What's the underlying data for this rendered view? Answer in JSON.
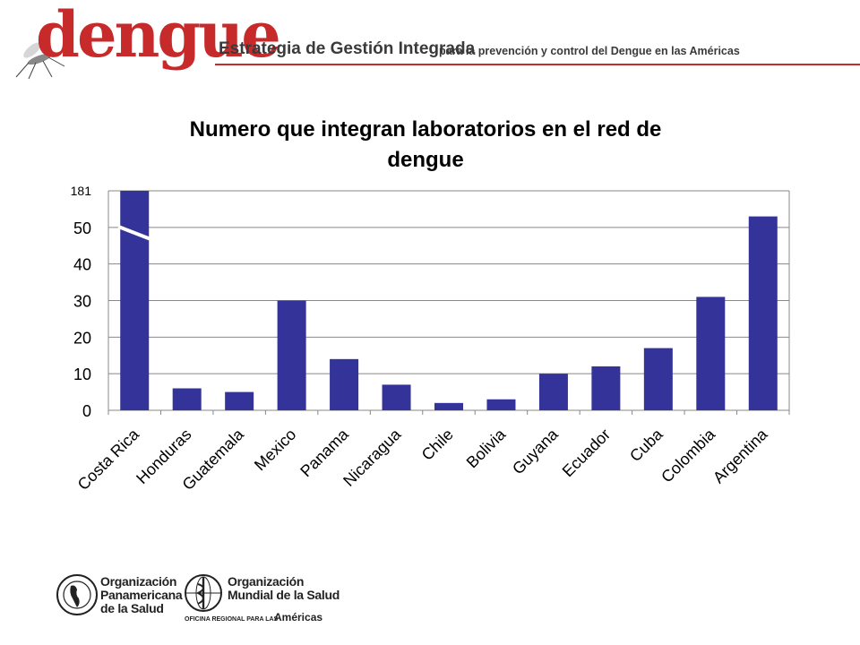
{
  "header": {
    "brand": "dengue",
    "title": "Estrategia de Gestión Integrada",
    "subtitle": "para la prevención y control del Dengue en las Américas",
    "accent_color": "#c62a2a"
  },
  "chart_data": {
    "type": "bar",
    "title_line1": "Numero que integran  laboratorios en el red de",
    "title_line2": "dengue",
    "categories": [
      "Costa Rica",
      "Honduras",
      "Guatemala",
      "Mexico",
      "Panama",
      "Nicaragua",
      "Chile",
      "Bolivia",
      "Guyana",
      "Ecuador",
      "Cuba",
      "Colombia",
      "Argentina"
    ],
    "values": [
      181,
      6,
      5,
      30,
      14,
      7,
      2,
      3,
      10,
      12,
      17,
      31,
      53
    ],
    "yticks": [
      "0",
      "10",
      "20",
      "30",
      "40",
      "50",
      "181"
    ],
    "ylim": [
      0,
      60
    ],
    "axis_break": true,
    "grid": true,
    "bar_color": "#333399"
  },
  "footer": {
    "ops_line1": "Organización",
    "ops_line2": "Panamericana",
    "ops_line3": "de la Salud",
    "oms_line1": "Organización",
    "oms_line2": "Mundial de la Salud",
    "oms_office": "OFICINA REGIONAL PARA LAS",
    "oms_region": "Américas"
  }
}
